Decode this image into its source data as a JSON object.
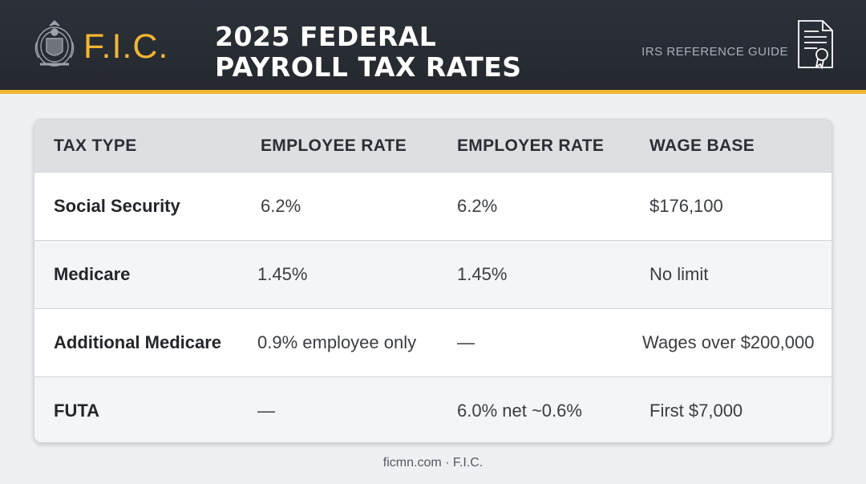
{
  "header": {
    "brand": "F.I.C.",
    "title_line1": "2025 FEDERAL",
    "title_line2": "PAYROLL TAX RATES",
    "guide_label": "IRS REFERENCE GUIDE",
    "seal_icon": "seal-crest-icon",
    "document_icon": "certificate-document-icon",
    "accent_color": "#f2b632",
    "background_color": "#2c3038"
  },
  "table": {
    "headers": [
      "TAX TYPE",
      "EMPLOYEE RATE",
      "EMPLOYER RATE",
      "WAGE BASE"
    ],
    "rows": [
      {
        "tax_type": "Social Security",
        "employee_rate": "6.2%",
        "employer_rate": "6.2%",
        "wage_base": "$176,100"
      },
      {
        "tax_type": "Medicare",
        "employee_rate": "1.45%",
        "employer_rate": "1.45%",
        "wage_base": "No limit"
      },
      {
        "tax_type": "Additional Medicare",
        "employee_rate": "0.9% employee only",
        "employer_rate": "—",
        "wage_base": "Wages over $200,000"
      },
      {
        "tax_type": "FUTA",
        "employee_rate": "—",
        "employer_rate": "6.0% net ~0.6%",
        "wage_base": "First $7,000"
      }
    ]
  },
  "footer": {
    "text": "ficmn.com · F.I.C."
  }
}
